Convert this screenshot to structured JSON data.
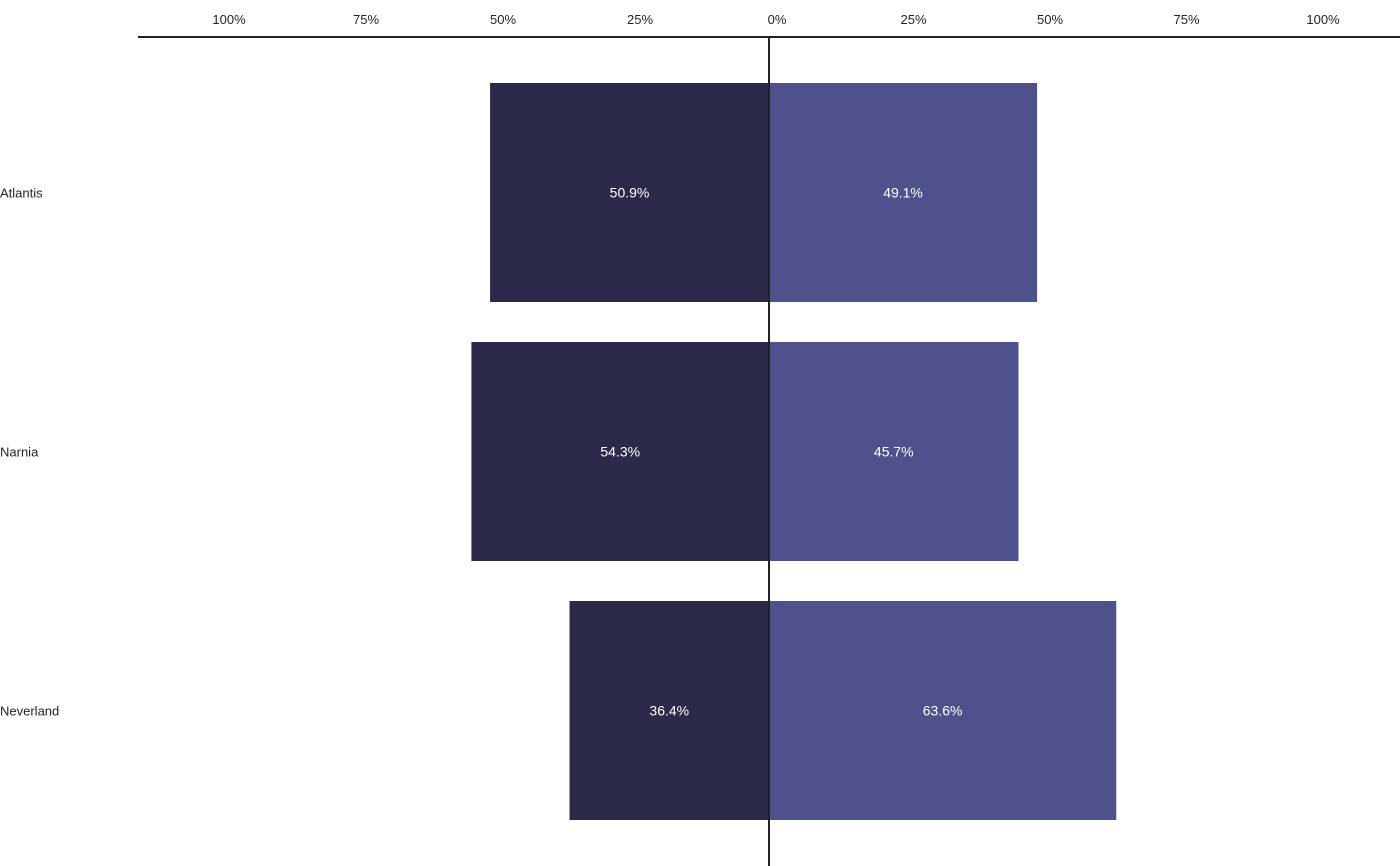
{
  "chart_data": {
    "type": "bar",
    "orientation": "horizontal-diverging",
    "title": "",
    "xlabel": "",
    "ylabel": "",
    "categories": [
      "Atlantis",
      "Narnia",
      "Neverland"
    ],
    "series": [
      {
        "side": "left",
        "values": [
          50.9,
          54.3,
          36.4
        ],
        "labels": [
          "50.9%",
          "54.3%",
          "36.4%"
        ],
        "color": "#2c2a4a"
      },
      {
        "side": "right",
        "values": [
          49.1,
          45.7,
          63.6
        ],
        "labels": [
          "49.1%",
          "45.7%",
          "63.6%"
        ],
        "color": "#4f518c"
      }
    ],
    "xlim": [
      -100,
      100
    ],
    "ticks": {
      "values": [
        -100,
        -75,
        -50,
        -25,
        0,
        25,
        50,
        75,
        100
      ],
      "labels": [
        "100%",
        "75%",
        "50%",
        "25%",
        "0%",
        "25%",
        "50%",
        "75%",
        "100%"
      ]
    },
    "axis_color": "#222222",
    "grid": false,
    "legend": "none"
  }
}
